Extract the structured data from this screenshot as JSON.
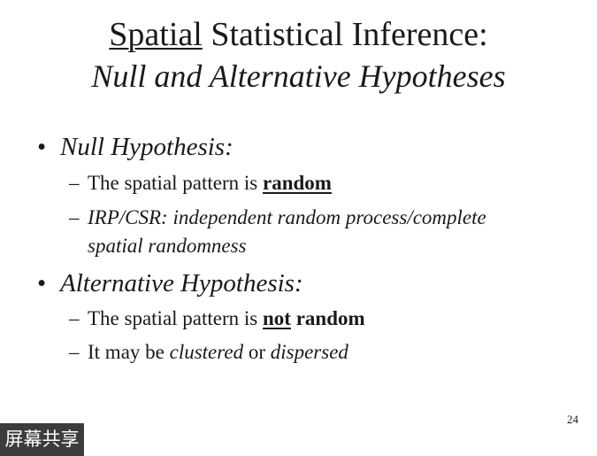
{
  "title": {
    "line1_underlined": "Spatial",
    "line1_rest": " Statistical Inference:",
    "line2": "Null and Alternative Hypotheses"
  },
  "bullets": [
    {
      "heading": "Null Hypothesis:",
      "subitems": [
        {
          "prefix": "The spatial pattern is ",
          "emphasis": "random"
        },
        {
          "line1": "IRP/CSR: independent random process/complete",
          "line2": "spatial randomness"
        }
      ]
    },
    {
      "heading": "Alternative Hypothesis:",
      "subitems": [
        {
          "prefix": "The spatial pattern is ",
          "emphasis_underlined": "not",
          "emphasis_rest": " random"
        },
        {
          "prefix": "It may be ",
          "italic1": "clustered",
          "middle": " or ",
          "italic2": "dispersed"
        }
      ]
    }
  ],
  "markers": {
    "bullet": "•",
    "dash": "–"
  },
  "page_number": "24",
  "overlay_label": "屏幕共享"
}
